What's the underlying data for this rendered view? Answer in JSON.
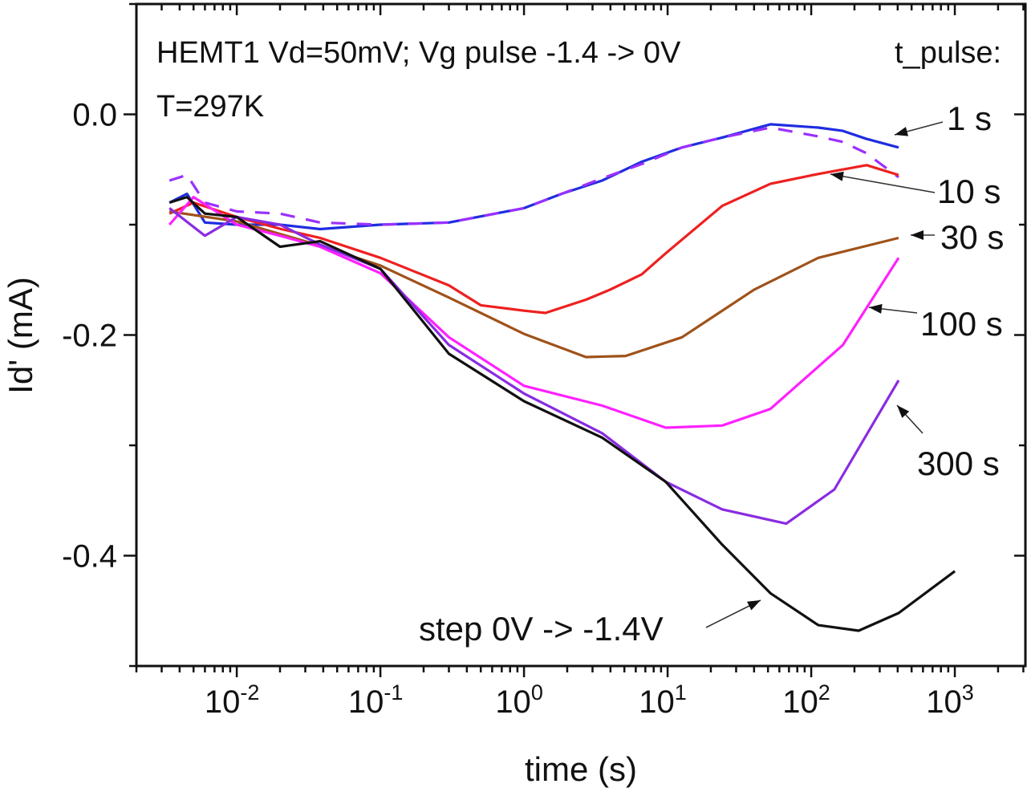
{
  "chart_data": {
    "type": "line",
    "title": "",
    "annotations": {
      "line1": "HEMT1 Vd=50mV; Vg pulse -1.4 -> 0V",
      "line2": "T=297K",
      "legend_title": "t_pulse:"
    },
    "xlabel": "time (s)",
    "ylabel": "Id' (mA)",
    "xscale": "log",
    "xlim": [
      0.002,
      3100
    ],
    "ylim": [
      -0.5,
      0.1
    ],
    "xticks": [
      {
        "base": "10",
        "exp": "-2",
        "value": 0.01
      },
      {
        "base": "10",
        "exp": "-1",
        "value": 0.1
      },
      {
        "base": "10",
        "exp": "0",
        "value": 1
      },
      {
        "base": "10",
        "exp": "1",
        "value": 10
      },
      {
        "base": "10",
        "exp": "2",
        "value": 100
      },
      {
        "base": "10",
        "exp": "3",
        "value": 1000
      }
    ],
    "yticks": [
      {
        "label": "0.0",
        "value": 0.0
      },
      {
        "label": "-0.2",
        "value": -0.2
      },
      {
        "label": "-0.4",
        "value": -0.4
      }
    ],
    "grid": false,
    "series": [
      {
        "name": "1 s",
        "color": "#1f2de0",
        "dashed": false,
        "x": [
          0.0034,
          0.0045,
          0.006,
          0.01,
          0.02,
          0.038,
          0.1,
          0.3,
          1,
          1.83,
          3.5,
          6.6,
          12.6,
          24,
          52,
          112,
          166,
          240,
          406
        ],
        "y": [
          -0.08,
          -0.072,
          -0.098,
          -0.1,
          -0.1,
          -0.104,
          -0.1,
          -0.098,
          -0.085,
          -0.072,
          -0.06,
          -0.043,
          -0.03,
          -0.021,
          -0.009,
          -0.012,
          -0.015,
          -0.022,
          -0.03
        ]
      },
      {
        "name": "1 s (dashed)",
        "color": "#9b30ff",
        "dashed": true,
        "x": [
          0.0034,
          0.0045,
          0.006,
          0.01,
          0.02,
          0.038,
          0.1,
          0.3,
          1,
          1.83,
          3.5,
          6.6,
          12.6,
          24,
          52,
          112,
          166,
          240,
          406
        ],
        "y": [
          -0.06,
          -0.055,
          -0.08,
          -0.088,
          -0.09,
          -0.098,
          -0.1,
          -0.098,
          -0.085,
          -0.072,
          -0.058,
          -0.045,
          -0.03,
          -0.021,
          -0.012,
          -0.02,
          -0.025,
          -0.035,
          -0.057
        ]
      },
      {
        "name": "10 s",
        "color": "#ee2020",
        "dashed": false,
        "x": [
          0.0034,
          0.005,
          0.01,
          0.0204,
          0.038,
          0.1,
          0.3,
          0.5,
          1,
          1.41,
          2.7,
          3.96,
          6.6,
          9.7,
          24,
          52,
          112,
          243,
          406
        ],
        "y": [
          -0.09,
          -0.08,
          -0.093,
          -0.104,
          -0.112,
          -0.13,
          -0.155,
          -0.173,
          -0.178,
          -0.18,
          -0.168,
          -0.159,
          -0.145,
          -0.126,
          -0.083,
          -0.063,
          -0.054,
          -0.046,
          -0.055
        ]
      },
      {
        "name": "30 s",
        "color": "#a0521a",
        "dashed": false,
        "x": [
          0.0034,
          0.01,
          0.038,
          0.1,
          0.3,
          1,
          2.7,
          5.1,
          12.6,
          40,
          112,
          406
        ],
        "y": [
          -0.088,
          -0.097,
          -0.119,
          -0.137,
          -0.166,
          -0.199,
          -0.22,
          -0.219,
          -0.202,
          -0.159,
          -0.13,
          -0.112
        ]
      },
      {
        "name": "100 s",
        "color": "#ff20ff",
        "dashed": false,
        "x": [
          0.0034,
          0.005,
          0.01,
          0.02,
          0.038,
          0.1,
          0.3,
          1,
          3.5,
          9.7,
          24,
          52,
          166,
          406
        ],
        "y": [
          -0.1,
          -0.075,
          -0.1,
          -0.11,
          -0.12,
          -0.144,
          -0.202,
          -0.246,
          -0.264,
          -0.284,
          -0.282,
          -0.267,
          -0.209,
          -0.13
        ]
      },
      {
        "name": "300 s",
        "color": "#8a2be2",
        "dashed": false,
        "x": [
          0.0034,
          0.006,
          0.01,
          0.02,
          0.038,
          0.1,
          0.3,
          1,
          3.5,
          9.7,
          24,
          67,
          145,
          406
        ],
        "y": [
          -0.085,
          -0.11,
          -0.093,
          -0.1,
          -0.118,
          -0.14,
          -0.209,
          -0.253,
          -0.289,
          -0.333,
          -0.358,
          -0.371,
          -0.34,
          -0.241
        ]
      },
      {
        "name": "step 0V -> -1.4V",
        "color": "#111111",
        "dashed": false,
        "x": [
          0.0034,
          0.0045,
          0.006,
          0.01,
          0.02,
          0.038,
          0.1,
          0.3,
          1,
          3.5,
          9.7,
          24,
          52,
          112,
          214,
          406,
          1000
        ],
        "y": [
          -0.08,
          -0.075,
          -0.09,
          -0.093,
          -0.12,
          -0.115,
          -0.14,
          -0.217,
          -0.26,
          -0.293,
          -0.333,
          -0.39,
          -0.434,
          -0.463,
          -0.468,
          -0.452,
          -0.414
        ]
      }
    ],
    "labels": [
      "1 s",
      "10 s",
      "30 s",
      "100 s",
      "300 s",
      "step 0V -> -1.4V"
    ]
  }
}
